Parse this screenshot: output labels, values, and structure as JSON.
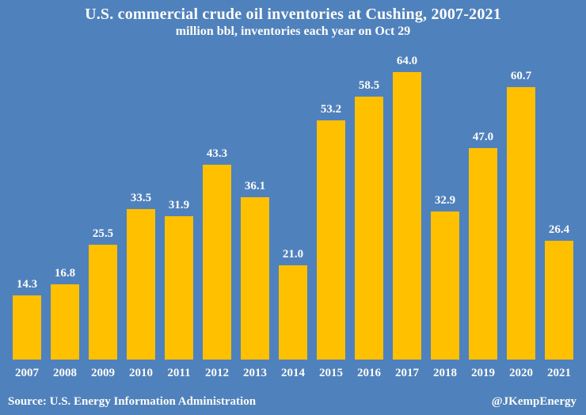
{
  "header": {
    "title": "U.S. commercial crude oil inventories at Cushing, 2007-2021",
    "subtitle": "million bbl, inventories each year on Oct 29"
  },
  "footer": {
    "source": "Source: U.S. Energy Information Administration",
    "handle": "@JKempEnergy"
  },
  "colors": {
    "background": "#4F81BD",
    "bar": "#FFC000",
    "text": "#FDFDF8"
  },
  "chart_data": {
    "type": "bar",
    "title": "U.S. commercial crude oil inventories at Cushing, 2007-2021",
    "subtitle": "million bbl, inventories each year on Oct 29",
    "xlabel": "",
    "ylabel": "million bbl",
    "categories": [
      "2007",
      "2008",
      "2009",
      "2010",
      "2011",
      "2012",
      "2013",
      "2014",
      "2015",
      "2016",
      "2017",
      "2018",
      "2019",
      "2020",
      "2021"
    ],
    "values": [
      14.3,
      16.8,
      25.5,
      33.5,
      31.9,
      43.3,
      36.1,
      21.0,
      53.2,
      58.5,
      64.0,
      32.9,
      47.0,
      60.7,
      26.4
    ],
    "value_labels": [
      "14.3",
      "16.8",
      "25.5",
      "33.5",
      "31.9",
      "43.3",
      "36.1",
      "21.0",
      "53.2",
      "58.5",
      "64.0",
      "32.9",
      "47.0",
      "60.7",
      "26.4"
    ],
    "ylim": [
      0,
      64
    ],
    "grid": false,
    "legend": "none",
    "data_labels": "above-bars",
    "bar_color": "#FFC000",
    "background_color": "#4F81BD"
  }
}
